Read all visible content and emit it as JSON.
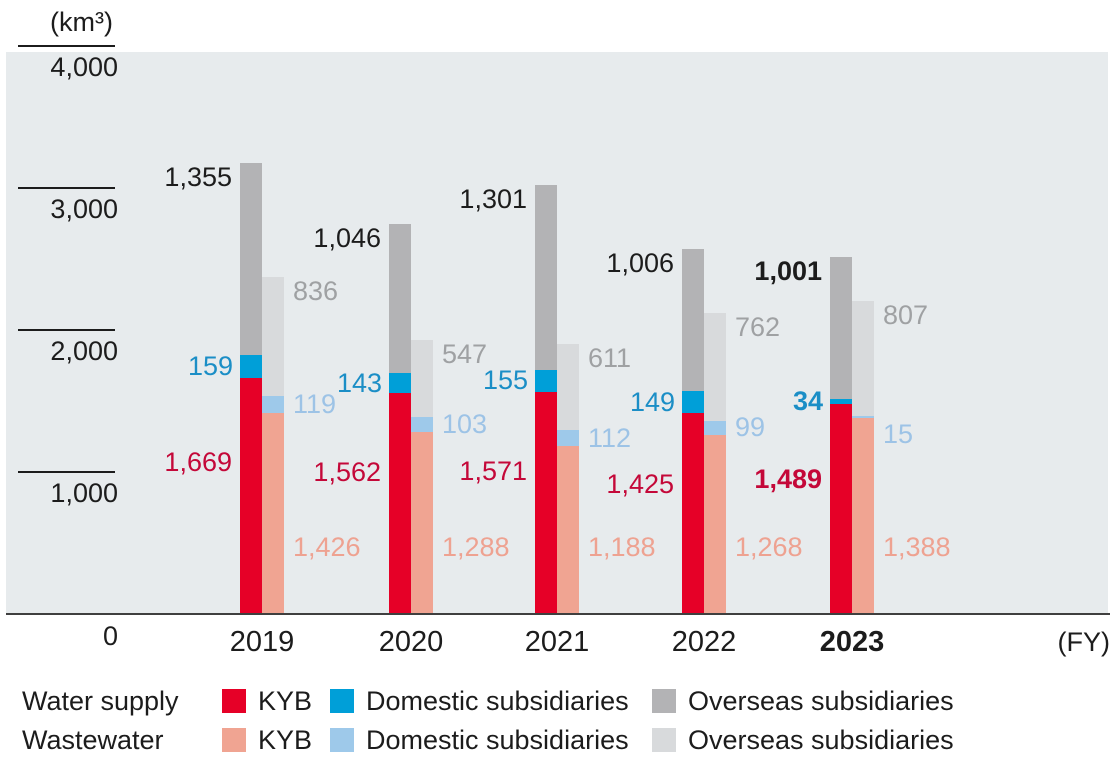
{
  "unit_label": "(km³)",
  "axis": {
    "y_ticks": [
      {
        "value": 4000,
        "label": "4,000"
      },
      {
        "value": 3000,
        "label": "3,000"
      },
      {
        "value": 2000,
        "label": "2,000"
      },
      {
        "value": 1000,
        "label": "1,000"
      },
      {
        "value": 0,
        "label": "0"
      }
    ],
    "fy_label": "(FY)",
    "categories": [
      "2019",
      "2020",
      "2021",
      "2022",
      "2023"
    ],
    "bold_category": "2023"
  },
  "chart_data": {
    "type": "bar",
    "stacked": true,
    "title": "(km³)",
    "unit": "km³",
    "xlabel": "(FY)",
    "ylabel": "",
    "ylim": [
      0,
      4000
    ],
    "grid": "left-tick-marks-only",
    "legend_position": "bottom",
    "categories": [
      "2019",
      "2020",
      "2021",
      "2022",
      "2023"
    ],
    "groups": [
      {
        "name": "Water supply",
        "series": [
          {
            "name": "KYB",
            "color": "#e60027",
            "label_color": "#c40839",
            "values": [
              1669,
              1562,
              1571,
              1425,
              1489
            ]
          },
          {
            "name": "Domestic subsidiaries",
            "color": "#009fd8",
            "label_color": "#1b8ec6",
            "values": [
              159,
              143,
              155,
              149,
              34
            ]
          },
          {
            "name": "Overseas subsidiaries",
            "color": "#b3b3b5",
            "label_color": "#1c1c1c",
            "values": [
              1355,
              1046,
              1301,
              1006,
              1001
            ]
          }
        ]
      },
      {
        "name": "Wastewater",
        "series": [
          {
            "name": "KYB",
            "color": "#f0a492",
            "label_color": "#eea291",
            "values": [
              1426,
              1288,
              1188,
              1268,
              1388
            ]
          },
          {
            "name": "Domestic subsidiaries",
            "color": "#9ec9ea",
            "label_color": "#9dc3e6",
            "values": [
              119,
              103,
              112,
              99,
              15
            ]
          },
          {
            "name": "Overseas subsidiaries",
            "color": "#d8dadc",
            "label_color": "#9fa1a3",
            "values": [
              836,
              547,
              611,
              762,
              807
            ]
          }
        ]
      }
    ]
  },
  "legend": {
    "rows": [
      {
        "label": "Water supply",
        "items": [
          {
            "name": "KYB",
            "color": "#e60027"
          },
          {
            "name": "Domestic subsidiaries",
            "color": "#009fd8"
          },
          {
            "name": "Overseas subsidiaries",
            "color": "#b3b3b5"
          }
        ]
      },
      {
        "label": "Wastewater",
        "items": [
          {
            "name": "KYB",
            "color": "#f0a492"
          },
          {
            "name": "Domestic subsidiaries",
            "color": "#9ec9ea"
          },
          {
            "name": "Overseas subsidiaries",
            "color": "#d8dadc"
          }
        ]
      }
    ]
  },
  "colors": {
    "plot_background": "#e7ebed",
    "axis_line": "#3f3f3f",
    "tick_line": "#1c1c1c",
    "text": "#1c1c1c",
    "page_background": "#ffffff"
  }
}
